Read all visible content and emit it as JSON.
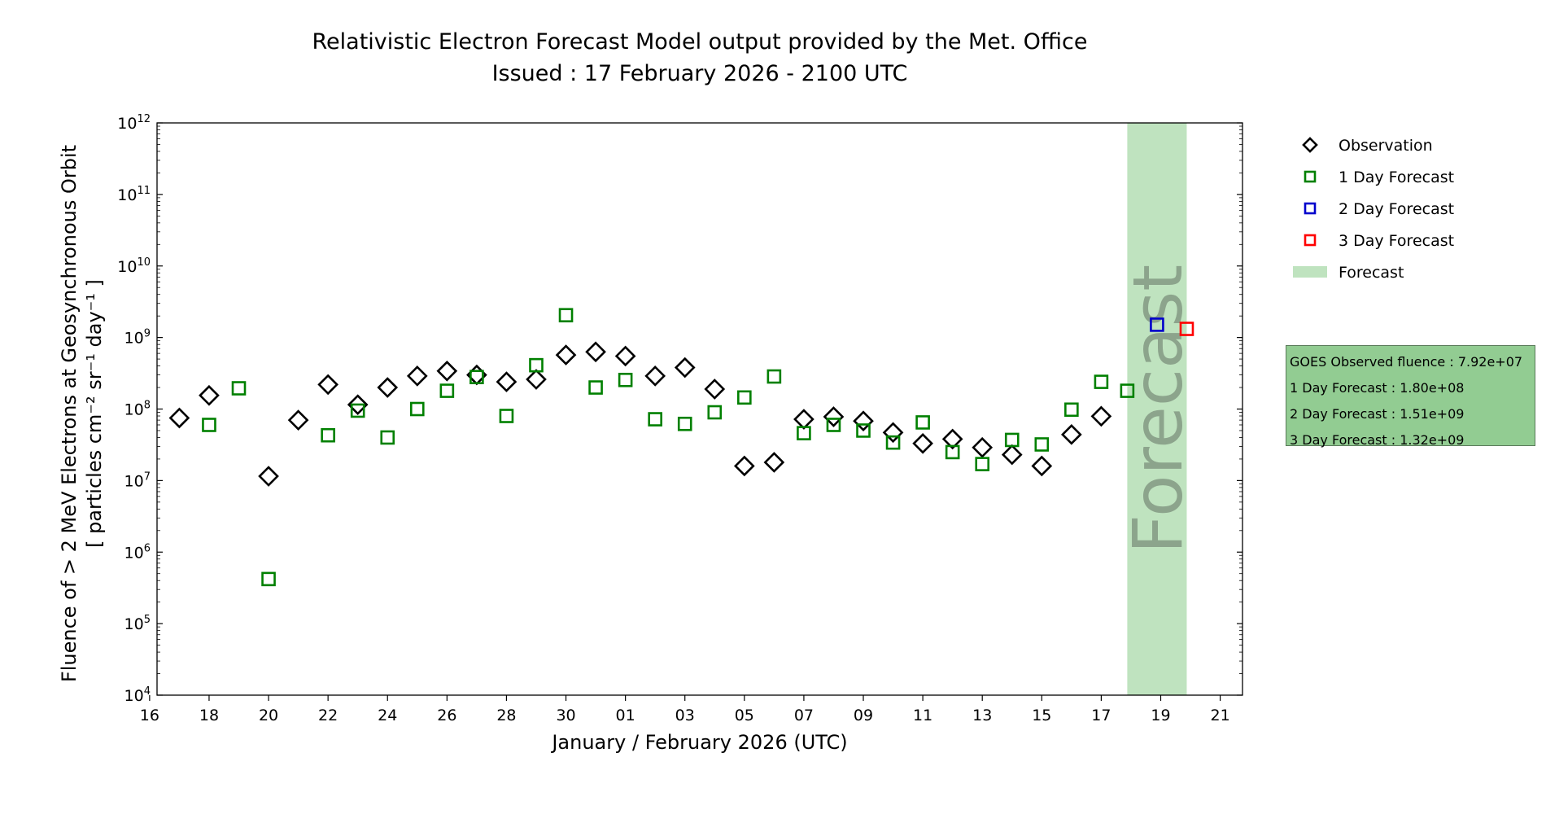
{
  "title_lines": [
    "Relativistic Electron Forecast Model output provided by the Met. Office",
    "Issued : 17 February 2026 - 2100 UTC"
  ],
  "stats_box": [
    "GOES Observed fluence : 7.92e+07",
    "1 Day Forecast : 1.80e+08",
    "2 Day Forecast : 1.51e+09",
    "3 Day Forecast : 1.32e+09"
  ],
  "colors": {
    "observation": "#000000",
    "day1": "#008000",
    "day2": "#0000cc",
    "day3": "#ff0000",
    "forecast_band": "#bfe3bf",
    "forecast_text": "#8ca48c"
  },
  "chart_data": {
    "type": "scatter",
    "title": "Relativistic Electron Forecast Model output provided by the Met. Office\nIssued : 17 February 2026 - 2100 UTC",
    "xlabel": "January / February 2026 (UTC)",
    "ylabel": "Fluence of > 2 MeV Electrons at Geosynchronous Orbit",
    "ylabel_units": "[ particles cm⁻² sr⁻¹ day⁻¹ ]",
    "yscale": "log",
    "ylim": [
      10000,
      1000000000000
    ],
    "xlim": [
      "2026-01-16T06:00",
      "2026-02-21T18:00"
    ],
    "y_tick_labels": [
      {
        "value": 10000,
        "base": "10",
        "exp": "4"
      },
      {
        "value": 100000,
        "base": "10",
        "exp": "5"
      },
      {
        "value": 1000000,
        "base": "10",
        "exp": "6"
      },
      {
        "value": 10000000,
        "base": "10",
        "exp": "7"
      },
      {
        "value": 100000000,
        "base": "10",
        "exp": "8"
      },
      {
        "value": 1000000000,
        "base": "10",
        "exp": "9"
      },
      {
        "value": 10000000000,
        "base": "10",
        "exp": "10"
      },
      {
        "value": 100000000000,
        "base": "10",
        "exp": "11"
      },
      {
        "value": 1000000000000,
        "base": "10",
        "exp": "12"
      }
    ],
    "x_tick_labels": [
      {
        "date": "2026-01-16",
        "label": "16"
      },
      {
        "date": "2026-01-18",
        "label": "18"
      },
      {
        "date": "2026-01-20",
        "label": "20"
      },
      {
        "date": "2026-01-22",
        "label": "22"
      },
      {
        "date": "2026-01-24",
        "label": "24"
      },
      {
        "date": "2026-01-26",
        "label": "26"
      },
      {
        "date": "2026-01-28",
        "label": "28"
      },
      {
        "date": "2026-01-30",
        "label": "30"
      },
      {
        "date": "2026-02-01",
        "label": "01"
      },
      {
        "date": "2026-02-03",
        "label": "03"
      },
      {
        "date": "2026-02-05",
        "label": "05"
      },
      {
        "date": "2026-02-07",
        "label": "07"
      },
      {
        "date": "2026-02-09",
        "label": "09"
      },
      {
        "date": "2026-02-11",
        "label": "11"
      },
      {
        "date": "2026-02-13",
        "label": "13"
      },
      {
        "date": "2026-02-15",
        "label": "15"
      },
      {
        "date": "2026-02-17",
        "label": "17"
      },
      {
        "date": "2026-02-19",
        "label": "19"
      },
      {
        "date": "2026-02-21",
        "label": "21"
      }
    ],
    "forecast_band": {
      "start": "2026-02-17T21:00",
      "end": "2026-02-19T21:00",
      "label": "Forecast"
    },
    "legend_position": "right",
    "legend": [
      "Observation",
      "1 Day Forecast",
      "2 Day Forecast",
      "3 Day Forecast",
      "Forecast"
    ],
    "series": [
      {
        "name": "Observation",
        "marker": "diamond",
        "points": [
          {
            "x": "2026-01-17",
            "y": 75000000.0
          },
          {
            "x": "2026-01-18",
            "y": 155000000.0
          },
          {
            "x": "2026-01-20",
            "y": 11500000.0
          },
          {
            "x": "2026-01-21",
            "y": 70000000.0
          },
          {
            "x": "2026-01-22",
            "y": 220000000.0
          },
          {
            "x": "2026-01-23",
            "y": 115000000.0
          },
          {
            "x": "2026-01-24",
            "y": 200000000.0
          },
          {
            "x": "2026-01-25",
            "y": 290000000.0
          },
          {
            "x": "2026-01-26",
            "y": 340000000.0
          },
          {
            "x": "2026-01-27",
            "y": 300000000.0
          },
          {
            "x": "2026-01-28",
            "y": 240000000.0
          },
          {
            "x": "2026-01-29",
            "y": 260000000.0
          },
          {
            "x": "2026-01-30",
            "y": 570000000.0
          },
          {
            "x": "2026-01-31",
            "y": 630000000.0
          },
          {
            "x": "2026-02-01",
            "y": 550000000.0
          },
          {
            "x": "2026-02-02",
            "y": 290000000.0
          },
          {
            "x": "2026-02-03",
            "y": 380000000.0
          },
          {
            "x": "2026-02-04",
            "y": 190000000.0
          },
          {
            "x": "2026-02-05",
            "y": 16000000.0
          },
          {
            "x": "2026-02-06",
            "y": 18000000.0
          },
          {
            "x": "2026-02-07",
            "y": 72000000.0
          },
          {
            "x": "2026-02-08",
            "y": 78000000.0
          },
          {
            "x": "2026-02-09",
            "y": 68000000.0
          },
          {
            "x": "2026-02-10",
            "y": 47000000.0
          },
          {
            "x": "2026-02-11",
            "y": 33000000.0
          },
          {
            "x": "2026-02-12",
            "y": 38000000.0
          },
          {
            "x": "2026-02-13",
            "y": 29000000.0
          },
          {
            "x": "2026-02-14",
            "y": 23000000.0
          },
          {
            "x": "2026-02-15",
            "y": 16000000.0
          },
          {
            "x": "2026-02-16",
            "y": 44000000.0
          },
          {
            "x": "2026-02-17",
            "y": 79200000.0
          }
        ]
      },
      {
        "name": "1 Day Forecast",
        "marker": "square",
        "points": [
          {
            "x": "2026-01-18",
            "y": 60000000.0
          },
          {
            "x": "2026-01-19",
            "y": 195000000.0
          },
          {
            "x": "2026-01-20",
            "y": 420000.0
          },
          {
            "x": "2026-01-22",
            "y": 43000000.0
          },
          {
            "x": "2026-01-23",
            "y": 95000000.0
          },
          {
            "x": "2026-01-24",
            "y": 40000000.0
          },
          {
            "x": "2026-01-25",
            "y": 100000000.0
          },
          {
            "x": "2026-01-26",
            "y": 180000000.0
          },
          {
            "x": "2026-01-27",
            "y": 280000000.0
          },
          {
            "x": "2026-01-28",
            "y": 80000000.0
          },
          {
            "x": "2026-01-29",
            "y": 410000000.0
          },
          {
            "x": "2026-01-30",
            "y": 2050000000.0
          },
          {
            "x": "2026-01-31",
            "y": 200000000.0
          },
          {
            "x": "2026-02-01",
            "y": 255000000.0
          },
          {
            "x": "2026-02-02",
            "y": 72000000.0
          },
          {
            "x": "2026-02-03",
            "y": 62000000.0
          },
          {
            "x": "2026-02-04",
            "y": 90000000.0
          },
          {
            "x": "2026-02-05",
            "y": 145000000.0
          },
          {
            "x": "2026-02-06",
            "y": 285000000.0
          },
          {
            "x": "2026-02-07",
            "y": 46000000.0
          },
          {
            "x": "2026-02-08",
            "y": 60000000.0
          },
          {
            "x": "2026-02-09",
            "y": 50000000.0
          },
          {
            "x": "2026-02-10",
            "y": 34000000.0
          },
          {
            "x": "2026-02-11",
            "y": 65000000.0
          },
          {
            "x": "2026-02-12",
            "y": 25000000.0
          },
          {
            "x": "2026-02-13",
            "y": 17000000.0
          },
          {
            "x": "2026-02-14",
            "y": 37000000.0
          },
          {
            "x": "2026-02-15",
            "y": 32000000.0
          },
          {
            "x": "2026-02-16",
            "y": 98000000.0
          },
          {
            "x": "2026-02-17",
            "y": 240000000.0
          },
          {
            "x": "2026-02-17T21:00",
            "y": 180000000.0
          }
        ]
      },
      {
        "name": "2 Day Forecast",
        "marker": "square",
        "points": [
          {
            "x": "2026-02-18T21:00",
            "y": 1510000000.0
          }
        ]
      },
      {
        "name": "3 Day Forecast",
        "marker": "square",
        "points": [
          {
            "x": "2026-02-19T21:00",
            "y": 1320000000.0
          }
        ]
      }
    ]
  }
}
